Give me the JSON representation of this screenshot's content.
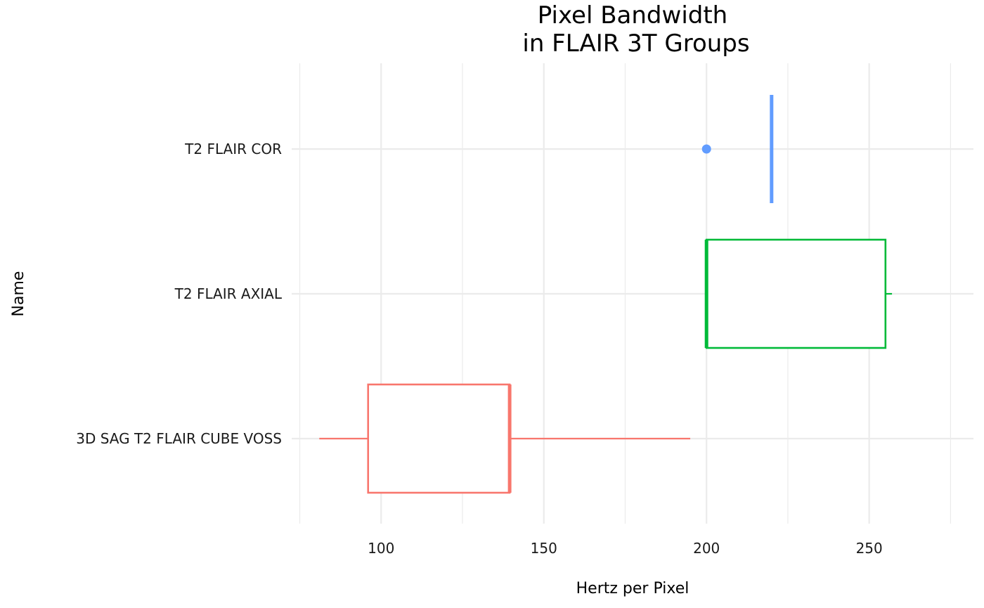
{
  "chart_data": {
    "type": "boxplot",
    "title_lines": [
      "Pixel Bandwidth",
      "in FLAIR 3T Groups"
    ],
    "xlabel": "Hertz per Pixel",
    "ylabel": "Name",
    "xlim": [
      75,
      266
    ],
    "x_ticks": [
      100,
      150,
      200,
      250
    ],
    "grid": true,
    "categories": [
      "3D SAG T2 FLAIR CUBE VOSS",
      "T2 FLAIR AXIAL",
      "T2 FLAIR COR"
    ],
    "series": [
      {
        "category": "3D SAG T2 FLAIR CUBE VOSS",
        "color": "#F8766D",
        "whisker_low": 81,
        "q1": 96,
        "median": 139.5,
        "q3": 139.5,
        "whisker_high": 195,
        "outliers": []
      },
      {
        "category": "T2 FLAIR AXIAL",
        "color": "#00BA38",
        "whisker_low": 200,
        "q1": 200,
        "median": 200,
        "q3": 255,
        "whisker_high": 257,
        "outliers": []
      },
      {
        "category": "T2 FLAIR COR",
        "color": "#619CFF",
        "whisker_low": 220,
        "q1": 220,
        "median": 220,
        "q3": 220,
        "whisker_high": 220,
        "outliers": [
          200
        ]
      }
    ]
  }
}
